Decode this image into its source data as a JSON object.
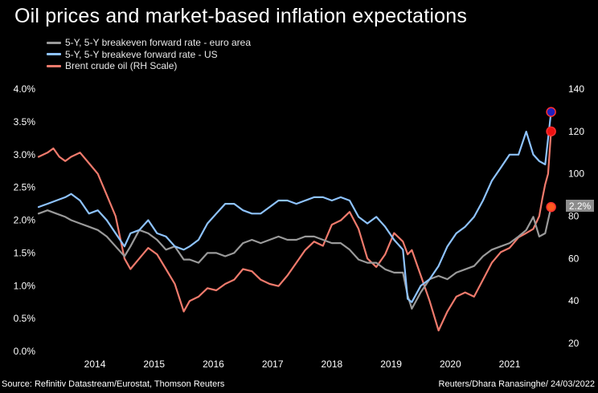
{
  "title": "Oil prices and market-based inflation expectations",
  "source": "Source: Refinitiv Datastream/Eurostat, Thomson Reuters",
  "credit": "Reuters/Dhara Ranasinghe/ 24/03/2022",
  "chart_data": {
    "type": "line",
    "title": "Oil prices and market-based inflation expectations",
    "legend_position": "top-left",
    "grid": false,
    "x_range": [
      2013.55,
      2022.3
    ],
    "x_ticks": [
      "2014",
      "2015",
      "2016",
      "2017",
      "2018",
      "2019",
      "2020",
      "2021"
    ],
    "y_left": {
      "ticks": [
        "0.0%",
        "0.5%",
        "1.0%",
        "1.5%",
        "2.0%",
        "2.5%",
        "3.0%",
        "3.5%",
        "4.0%"
      ],
      "range": [
        0,
        4
      ]
    },
    "y_right": {
      "ticks": [
        "20",
        "40",
        "60",
        "80",
        "100",
        "120",
        "140"
      ],
      "range": [
        20,
        140
      ]
    },
    "end_label": "2.2%",
    "series": [
      {
        "name": "5-Y, 5-Y breakeven forward rate - euro area",
        "axis": "left",
        "color": "#9a9a9a",
        "end_marker": "#ff5a1f",
        "x": [
          2013.55,
          2013.7,
          2013.85,
          2014.0,
          2014.1,
          2014.25,
          2014.4,
          2014.55,
          2014.7,
          2014.85,
          2015.0,
          2015.1,
          2015.25,
          2015.4,
          2015.55,
          2015.7,
          2015.85,
          2016.0,
          2016.1,
          2016.25,
          2016.4,
          2016.55,
          2016.7,
          2016.85,
          2017.0,
          2017.15,
          2017.3,
          2017.45,
          2017.6,
          2017.75,
          2017.9,
          2018.05,
          2018.2,
          2018.35,
          2018.5,
          2018.65,
          2018.8,
          2018.95,
          2019.1,
          2019.25,
          2019.4,
          2019.55,
          2019.7,
          2019.78,
          2019.85,
          2020.0,
          2020.15,
          2020.3,
          2020.45,
          2020.6,
          2020.75,
          2020.9,
          2021.05,
          2021.2,
          2021.35,
          2021.5,
          2021.65,
          2021.78,
          2021.9,
          2022.0,
          2022.1,
          2022.2
        ],
        "y": [
          2.1,
          2.15,
          2.1,
          2.05,
          2.0,
          1.95,
          1.9,
          1.85,
          1.75,
          1.6,
          1.45,
          1.6,
          1.85,
          1.8,
          1.7,
          1.55,
          1.6,
          1.4,
          1.4,
          1.35,
          1.5,
          1.5,
          1.45,
          1.5,
          1.65,
          1.7,
          1.65,
          1.7,
          1.75,
          1.7,
          1.7,
          1.75,
          1.75,
          1.7,
          1.65,
          1.65,
          1.55,
          1.4,
          1.35,
          1.35,
          1.25,
          1.2,
          1.2,
          0.85,
          0.65,
          0.9,
          1.1,
          1.15,
          1.1,
          1.2,
          1.25,
          1.3,
          1.45,
          1.55,
          1.6,
          1.65,
          1.75,
          1.85,
          2.05,
          1.75,
          1.8,
          2.2
        ]
      },
      {
        "name": "5-Y, 5-Y breakeve forward rate - US",
        "axis": "left",
        "color": "#8ec3ff",
        "end_marker": "#2020c0",
        "x": [
          2013.55,
          2013.7,
          2013.85,
          2014.0,
          2014.1,
          2014.25,
          2014.4,
          2014.55,
          2014.7,
          2014.85,
          2015.0,
          2015.1,
          2015.25,
          2015.4,
          2015.55,
          2015.7,
          2015.85,
          2016.0,
          2016.1,
          2016.25,
          2016.4,
          2016.55,
          2016.7,
          2016.85,
          2017.0,
          2017.15,
          2017.3,
          2017.45,
          2017.6,
          2017.75,
          2017.9,
          2018.05,
          2018.2,
          2018.35,
          2018.5,
          2018.65,
          2018.8,
          2018.95,
          2019.1,
          2019.25,
          2019.4,
          2019.55,
          2019.7,
          2019.78,
          2019.85,
          2020.0,
          2020.15,
          2020.3,
          2020.45,
          2020.6,
          2020.75,
          2020.9,
          2021.05,
          2021.2,
          2021.35,
          2021.5,
          2021.65,
          2021.78,
          2021.9,
          2022.0,
          2022.1,
          2022.2
        ],
        "y": [
          2.2,
          2.25,
          2.3,
          2.35,
          2.4,
          2.3,
          2.1,
          2.15,
          2.0,
          1.8,
          1.6,
          1.8,
          1.85,
          2.0,
          1.8,
          1.75,
          1.6,
          1.55,
          1.6,
          1.7,
          1.95,
          2.1,
          2.25,
          2.25,
          2.15,
          2.1,
          2.1,
          2.2,
          2.3,
          2.3,
          2.25,
          2.3,
          2.35,
          2.35,
          2.3,
          2.35,
          2.3,
          2.05,
          1.95,
          2.05,
          1.9,
          1.7,
          1.55,
          0.8,
          0.75,
          1.0,
          1.1,
          1.3,
          1.6,
          1.8,
          1.9,
          2.05,
          2.3,
          2.6,
          2.8,
          3.0,
          3.0,
          3.35,
          3.0,
          2.9,
          2.85,
          3.65
        ]
      },
      {
        "name": "Brent crude oil (RH Scale)",
        "axis": "right",
        "color": "#ef7a6c",
        "end_marker": "#ee1111",
        "x": [
          2013.55,
          2013.7,
          2013.8,
          2013.9,
          2014.0,
          2014.1,
          2014.25,
          2014.4,
          2014.55,
          2014.7,
          2014.85,
          2015.0,
          2015.1,
          2015.25,
          2015.4,
          2015.55,
          2015.7,
          2015.85,
          2016.0,
          2016.1,
          2016.25,
          2016.4,
          2016.55,
          2016.7,
          2016.85,
          2017.0,
          2017.15,
          2017.3,
          2017.45,
          2017.6,
          2017.75,
          2017.9,
          2018.05,
          2018.2,
          2018.35,
          2018.5,
          2018.65,
          2018.8,
          2018.95,
          2019.1,
          2019.25,
          2019.4,
          2019.55,
          2019.7,
          2019.78,
          2019.85,
          2020.0,
          2020.15,
          2020.3,
          2020.45,
          2020.6,
          2020.75,
          2020.9,
          2021.05,
          2021.2,
          2021.35,
          2021.5,
          2021.65,
          2021.78,
          2021.9,
          2022.0,
          2022.05,
          2022.1,
          2022.15,
          2022.2
        ],
        "y": [
          108,
          110,
          112,
          108,
          106,
          108,
          110,
          105,
          100,
          90,
          80,
          60,
          55,
          60,
          65,
          62,
          55,
          48,
          35,
          40,
          42,
          46,
          45,
          48,
          50,
          55,
          54,
          50,
          48,
          47,
          52,
          58,
          64,
          68,
          66,
          76,
          78,
          82,
          74,
          60,
          56,
          62,
          72,
          68,
          62,
          64,
          52,
          40,
          26,
          35,
          42,
          44,
          42,
          50,
          58,
          63,
          65,
          70,
          72,
          74,
          80,
          88,
          95,
          100,
          120
        ]
      }
    ]
  }
}
